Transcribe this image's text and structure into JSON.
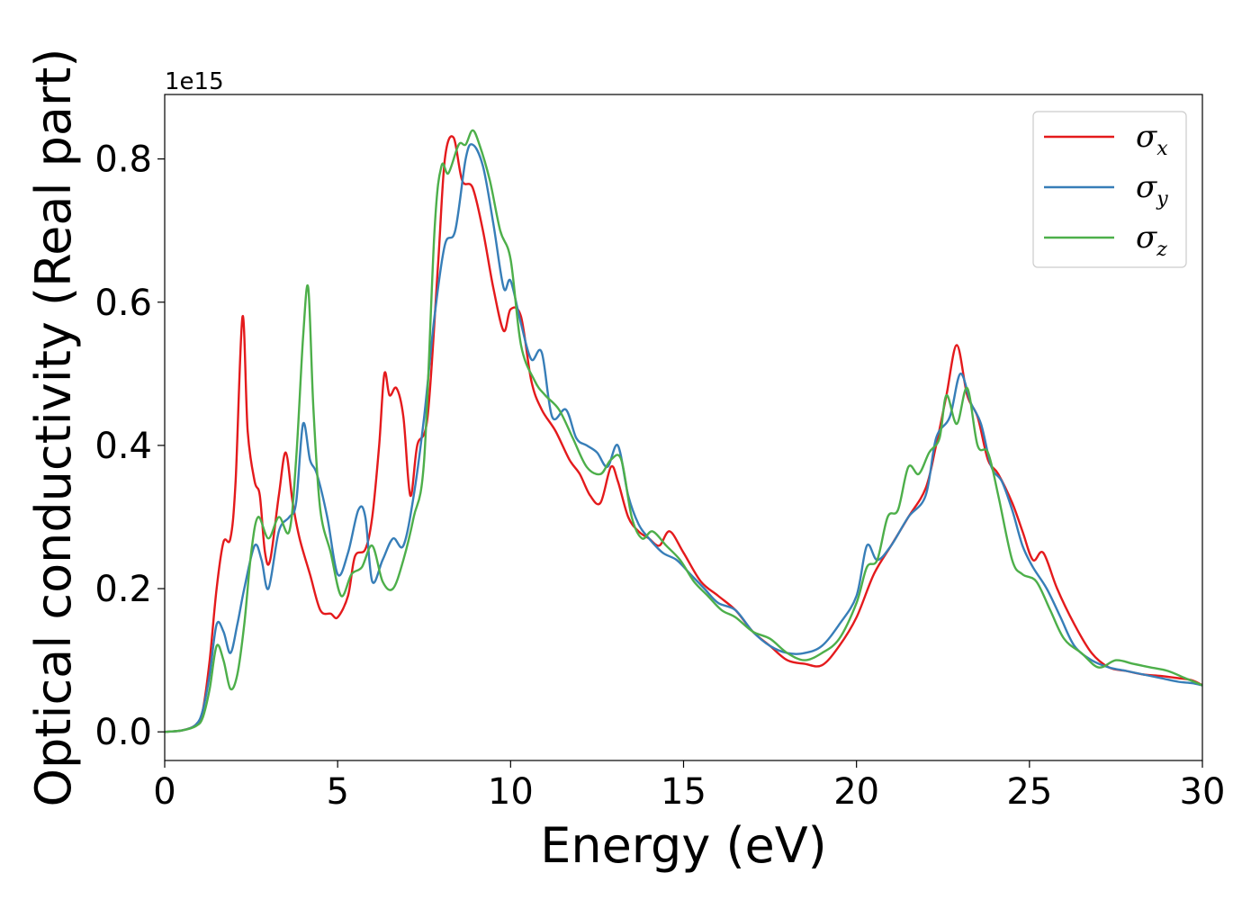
{
  "chart_data": {
    "type": "line",
    "xlabel": "Energy (eV)",
    "ylabel": "Optical conductivity (Real part)",
    "y_offset_text": "1e15",
    "xlim": [
      0,
      30
    ],
    "ylim": [
      -0.04,
      0.89
    ],
    "x_ticks": [
      0,
      5,
      10,
      15,
      20,
      25,
      30
    ],
    "x_tick_labels": [
      "0",
      "5",
      "10",
      "15",
      "20",
      "25",
      "30"
    ],
    "y_ticks": [
      0.0,
      0.2,
      0.4,
      0.6,
      0.8
    ],
    "y_tick_labels": [
      "0.0",
      "0.2",
      "0.4",
      "0.6",
      "0.8"
    ],
    "grid": false,
    "legend_position": "top-right",
    "series": [
      {
        "name": "σx",
        "symbol": "σ",
        "subscript": "x",
        "color": "#e41a1c",
        "x": [
          0,
          0.5,
          0.9,
          1.1,
          1.3,
          1.5,
          1.7,
          1.9,
          2.05,
          2.25,
          2.4,
          2.6,
          2.75,
          2.9,
          3.05,
          3.3,
          3.5,
          3.7,
          3.9,
          4.2,
          4.5,
          4.8,
          5.0,
          5.3,
          5.5,
          5.8,
          6.0,
          6.2,
          6.35,
          6.5,
          6.7,
          6.9,
          7.1,
          7.3,
          7.6,
          7.9,
          8.1,
          8.35,
          8.6,
          8.9,
          9.2,
          9.5,
          9.8,
          10.0,
          10.3,
          10.6,
          10.9,
          11.3,
          11.7,
          12.0,
          12.3,
          12.6,
          12.9,
          13.1,
          13.4,
          13.7,
          14.0,
          14.3,
          14.6,
          15.0,
          15.5,
          16.0,
          16.5,
          17.0,
          17.5,
          18.0,
          18.5,
          19.0,
          19.5,
          20.0,
          20.5,
          21.0,
          21.5,
          22.0,
          22.3,
          22.6,
          22.9,
          23.2,
          23.5,
          23.8,
          24.1,
          24.5,
          24.8,
          25.1,
          25.4,
          25.8,
          26.3,
          26.8,
          27.3,
          27.8,
          28.3,
          28.8,
          29.3,
          29.7,
          30.0
        ],
        "y": [
          0.0,
          0.002,
          0.01,
          0.03,
          0.1,
          0.2,
          0.265,
          0.27,
          0.35,
          0.58,
          0.42,
          0.35,
          0.33,
          0.25,
          0.24,
          0.33,
          0.39,
          0.32,
          0.27,
          0.22,
          0.17,
          0.165,
          0.16,
          0.19,
          0.245,
          0.255,
          0.3,
          0.4,
          0.5,
          0.47,
          0.48,
          0.44,
          0.33,
          0.4,
          0.44,
          0.65,
          0.8,
          0.83,
          0.77,
          0.76,
          0.7,
          0.62,
          0.56,
          0.59,
          0.58,
          0.49,
          0.45,
          0.42,
          0.38,
          0.36,
          0.33,
          0.32,
          0.37,
          0.35,
          0.3,
          0.28,
          0.27,
          0.26,
          0.28,
          0.25,
          0.21,
          0.19,
          0.17,
          0.14,
          0.12,
          0.1,
          0.095,
          0.093,
          0.12,
          0.16,
          0.22,
          0.26,
          0.3,
          0.34,
          0.4,
          0.47,
          0.54,
          0.47,
          0.44,
          0.38,
          0.36,
          0.32,
          0.28,
          0.24,
          0.25,
          0.2,
          0.15,
          0.11,
          0.09,
          0.085,
          0.08,
          0.078,
          0.075,
          0.072,
          0.065
        ]
      },
      {
        "name": "σy",
        "symbol": "σ",
        "subscript": "y",
        "color": "#377eb8",
        "x": [
          0,
          0.5,
          0.9,
          1.1,
          1.3,
          1.5,
          1.7,
          1.9,
          2.1,
          2.3,
          2.6,
          2.8,
          3.0,
          3.3,
          3.6,
          3.8,
          4.0,
          4.2,
          4.4,
          4.7,
          5.0,
          5.3,
          5.6,
          5.8,
          6.0,
          6.3,
          6.6,
          6.9,
          7.2,
          7.5,
          7.8,
          8.1,
          8.4,
          8.7,
          8.9,
          9.2,
          9.5,
          9.8,
          10.0,
          10.3,
          10.6,
          10.9,
          11.2,
          11.6,
          11.9,
          12.2,
          12.5,
          12.8,
          13.1,
          13.4,
          13.7,
          14.0,
          14.4,
          14.8,
          15.2,
          15.6,
          16.0,
          16.5,
          17.0,
          17.5,
          18.0,
          18.5,
          19.0,
          19.5,
          20.0,
          20.3,
          20.6,
          21.0,
          21.5,
          22.0,
          22.3,
          22.7,
          23.0,
          23.3,
          23.6,
          23.9,
          24.2,
          24.5,
          24.8,
          25.1,
          25.5,
          25.9,
          26.3,
          26.8,
          27.3,
          27.8,
          28.3,
          28.8,
          29.3,
          29.7,
          30.0
        ],
        "y": [
          0.0,
          0.002,
          0.01,
          0.03,
          0.08,
          0.15,
          0.14,
          0.11,
          0.15,
          0.2,
          0.26,
          0.24,
          0.2,
          0.28,
          0.3,
          0.32,
          0.43,
          0.38,
          0.36,
          0.3,
          0.22,
          0.25,
          0.31,
          0.3,
          0.21,
          0.24,
          0.27,
          0.26,
          0.33,
          0.44,
          0.58,
          0.68,
          0.7,
          0.8,
          0.82,
          0.79,
          0.71,
          0.62,
          0.63,
          0.57,
          0.52,
          0.53,
          0.44,
          0.45,
          0.41,
          0.4,
          0.39,
          0.37,
          0.4,
          0.33,
          0.29,
          0.27,
          0.25,
          0.24,
          0.22,
          0.2,
          0.18,
          0.17,
          0.14,
          0.12,
          0.11,
          0.11,
          0.12,
          0.15,
          0.19,
          0.26,
          0.24,
          0.26,
          0.3,
          0.33,
          0.41,
          0.44,
          0.5,
          0.46,
          0.43,
          0.37,
          0.35,
          0.31,
          0.26,
          0.23,
          0.2,
          0.16,
          0.12,
          0.1,
          0.09,
          0.085,
          0.08,
          0.075,
          0.07,
          0.068,
          0.065
        ]
      },
      {
        "name": "σz",
        "symbol": "σ",
        "subscript": "z",
        "color": "#4daf4a",
        "x": [
          0,
          0.5,
          0.9,
          1.1,
          1.3,
          1.5,
          1.7,
          1.9,
          2.1,
          2.3,
          2.5,
          2.7,
          3.0,
          3.3,
          3.6,
          3.8,
          4.0,
          4.15,
          4.3,
          4.5,
          4.8,
          5.1,
          5.4,
          5.7,
          6.0,
          6.3,
          6.6,
          6.9,
          7.2,
          7.5,
          7.8,
          8.0,
          8.2,
          8.5,
          8.7,
          8.9,
          9.1,
          9.4,
          9.7,
          10.0,
          10.3,
          10.7,
          11.0,
          11.4,
          11.8,
          12.2,
          12.6,
          12.9,
          13.2,
          13.5,
          13.8,
          14.1,
          14.5,
          14.9,
          15.3,
          15.7,
          16.1,
          16.5,
          17.0,
          17.5,
          18.0,
          18.5,
          19.0,
          19.5,
          20.0,
          20.3,
          20.6,
          20.9,
          21.2,
          21.5,
          21.8,
          22.1,
          22.4,
          22.6,
          22.9,
          23.2,
          23.5,
          23.8,
          24.1,
          24.5,
          24.8,
          25.2,
          25.6,
          26.0,
          26.5,
          27.0,
          27.5,
          28.0,
          28.5,
          29.0,
          29.5,
          30.0
        ],
        "y": [
          0.0,
          0.002,
          0.008,
          0.02,
          0.06,
          0.12,
          0.1,
          0.06,
          0.08,
          0.15,
          0.25,
          0.3,
          0.27,
          0.3,
          0.28,
          0.38,
          0.55,
          0.62,
          0.45,
          0.31,
          0.25,
          0.19,
          0.22,
          0.23,
          0.26,
          0.21,
          0.2,
          0.24,
          0.3,
          0.38,
          0.7,
          0.79,
          0.78,
          0.82,
          0.82,
          0.84,
          0.82,
          0.77,
          0.7,
          0.66,
          0.54,
          0.49,
          0.47,
          0.45,
          0.41,
          0.37,
          0.36,
          0.38,
          0.38,
          0.3,
          0.27,
          0.28,
          0.26,
          0.24,
          0.21,
          0.19,
          0.17,
          0.16,
          0.14,
          0.13,
          0.11,
          0.1,
          0.11,
          0.13,
          0.18,
          0.23,
          0.24,
          0.3,
          0.31,
          0.37,
          0.36,
          0.39,
          0.41,
          0.47,
          0.43,
          0.48,
          0.4,
          0.39,
          0.33,
          0.24,
          0.22,
          0.21,
          0.17,
          0.13,
          0.11,
          0.09,
          0.1,
          0.095,
          0.09,
          0.085,
          0.075,
          0.065
        ]
      }
    ]
  }
}
